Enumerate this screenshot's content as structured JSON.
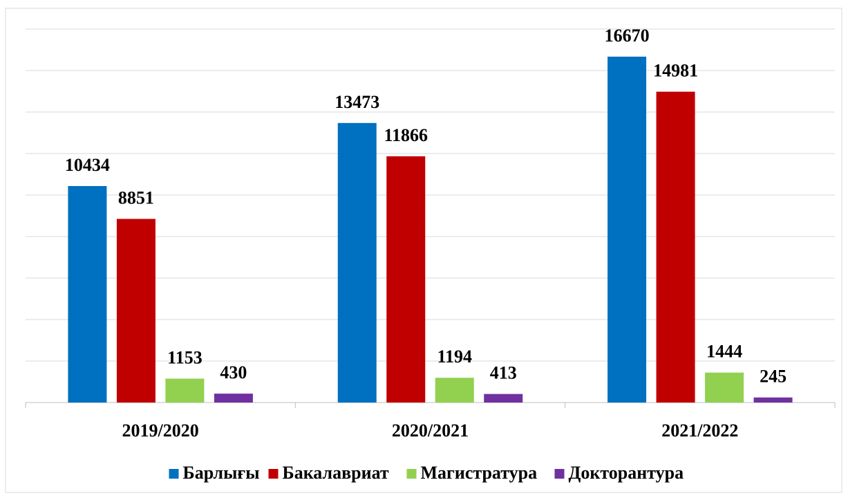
{
  "chart_data": {
    "type": "bar",
    "categories": [
      "2019/2020",
      "2020/2021",
      "2021/2022"
    ],
    "series": [
      {
        "name": "Барлығы",
        "color": "#0070c0",
        "values": [
          10434,
          13473,
          16670
        ]
      },
      {
        "name": "Бакалавриат",
        "color": "#c00000",
        "values": [
          8851,
          11866,
          14981
        ]
      },
      {
        "name": "Магистратура",
        "color": "#92d050",
        "values": [
          1153,
          1194,
          1444
        ]
      },
      {
        "name": "Докторантура",
        "color": "#7030a0",
        "values": [
          430,
          413,
          245
        ]
      }
    ],
    "ylim": [
      0,
      18000
    ],
    "yticks": [
      0,
      2000,
      4000,
      6000,
      8000,
      10000,
      12000,
      14000,
      16000,
      18000
    ],
    "grid": true,
    "legend": "bottom"
  }
}
